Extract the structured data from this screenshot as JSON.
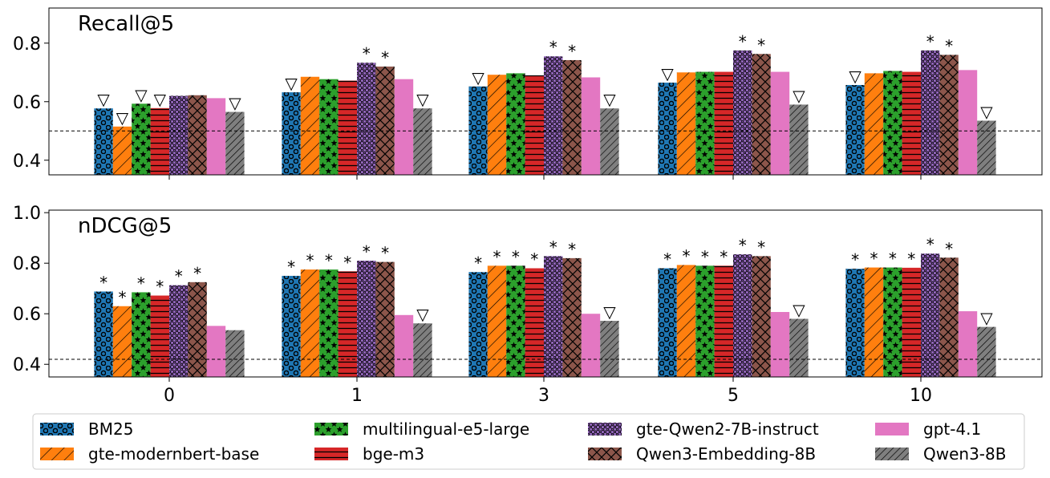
{
  "colors": {
    "BM25": "#1f77b4",
    "gte-modernbert-base": "#ff7f0e",
    "multilingual-e5-large": "#2ca02c",
    "bge-m3": "#d62728",
    "gte-Qwen2-7B-instruct": "#9467bd",
    "Qwen3-Embedding-8B": "#8c564b",
    "gpt-4.1": "#e377c2",
    "Qwen3-8B": "#7f7f7f"
  },
  "hatches": [
    "circles",
    "diagonal",
    "stars",
    "horizontal",
    "dots",
    "crosshatch",
    "none",
    "dense-diagonal"
  ],
  "chart_data": [
    {
      "type": "bar",
      "title": "Recall@5",
      "categories": [
        "0",
        "1",
        "3",
        "5",
        "10"
      ],
      "ylim": [
        0.35,
        0.92
      ],
      "yticks": [
        "0.4",
        "0.6",
        "0.8"
      ],
      "ytick_values": [
        0.4,
        0.6,
        0.8
      ],
      "reference_line": 0.5,
      "grid": false,
      "series": [
        {
          "name": "BM25",
          "values": [
            0.577,
            0.632,
            0.652,
            0.665,
            0.657
          ],
          "marks": [
            "▽",
            "▽",
            "▽",
            "▽",
            "▽"
          ]
        },
        {
          "name": "gte-modernbert-base",
          "values": [
            0.515,
            0.685,
            0.692,
            0.7,
            0.697
          ],
          "marks": [
            "▽",
            "",
            "",
            "",
            ""
          ]
        },
        {
          "name": "multilingual-e5-large",
          "values": [
            0.593,
            0.677,
            0.697,
            0.702,
            0.705
          ],
          "marks": [
            "▽",
            "",
            "",
            "",
            ""
          ]
        },
        {
          "name": "bge-m3",
          "values": [
            0.578,
            0.672,
            0.69,
            0.702,
            0.702
          ],
          "marks": [
            "▽",
            "",
            "",
            "",
            ""
          ]
        },
        {
          "name": "gte-Qwen2-7B-instruct",
          "values": [
            0.62,
            0.733,
            0.755,
            0.775,
            0.775
          ],
          "marks": [
            "",
            "*",
            "*",
            "*",
            "*"
          ]
        },
        {
          "name": "Qwen3-Embedding-8B",
          "values": [
            0.622,
            0.72,
            0.742,
            0.763,
            0.76
          ],
          "marks": [
            "",
            "*",
            "*",
            "*",
            "*"
          ]
        },
        {
          "name": "gpt-4.1",
          "values": [
            0.612,
            0.677,
            0.683,
            0.702,
            0.708
          ],
          "marks": [
            "",
            "",
            "",
            "",
            ""
          ]
        },
        {
          "name": "Qwen3-8B",
          "values": [
            0.565,
            0.577,
            0.577,
            0.59,
            0.535
          ],
          "marks": [
            "▽",
            "▽",
            "▽",
            "▽",
            "▽"
          ]
        }
      ]
    },
    {
      "type": "bar",
      "title": "nDCG@5",
      "categories": [
        "0",
        "1",
        "3",
        "5",
        "10"
      ],
      "ylim": [
        0.35,
        1.01
      ],
      "yticks": [
        "0.4",
        "0.6",
        "0.8",
        "1.0"
      ],
      "ytick_values": [
        0.4,
        0.6,
        0.8,
        1.0
      ],
      "reference_line": 0.42,
      "grid": false,
      "series": [
        {
          "name": "BM25",
          "values": [
            0.688,
            0.75,
            0.765,
            0.78,
            0.778
          ],
          "marks": [
            "*",
            "*",
            "*",
            "*",
            "*"
          ]
        },
        {
          "name": "gte-modernbert-base",
          "values": [
            0.63,
            0.775,
            0.79,
            0.793,
            0.783
          ],
          "marks": [
            "*",
            "*",
            "*",
            "*",
            "*"
          ]
        },
        {
          "name": "multilingual-e5-large",
          "values": [
            0.685,
            0.775,
            0.79,
            0.79,
            0.783
          ],
          "marks": [
            "*",
            "*",
            "*",
            "*",
            "*"
          ]
        },
        {
          "name": "bge-m3",
          "values": [
            0.672,
            0.768,
            0.78,
            0.79,
            0.782
          ],
          "marks": [
            "*",
            "*",
            "*",
            "*",
            "*"
          ]
        },
        {
          "name": "gte-Qwen2-7B-instruct",
          "values": [
            0.713,
            0.81,
            0.828,
            0.835,
            0.838
          ],
          "marks": [
            "*",
            "*",
            "*",
            "*",
            "*"
          ]
        },
        {
          "name": "Qwen3-Embedding-8B",
          "values": [
            0.725,
            0.805,
            0.82,
            0.828,
            0.822
          ],
          "marks": [
            "*",
            "*",
            "*",
            "*",
            "*"
          ]
        },
        {
          "name": "gpt-4.1",
          "values": [
            0.552,
            0.595,
            0.6,
            0.607,
            0.61
          ],
          "marks": [
            "",
            "",
            "",
            "",
            ""
          ]
        },
        {
          "name": "Qwen3-8B",
          "values": [
            0.535,
            0.562,
            0.572,
            0.58,
            0.548
          ],
          "marks": [
            "",
            "▽",
            "▽",
            "▽",
            "▽"
          ]
        }
      ]
    }
  ],
  "legend": {
    "placement": "bottom",
    "entries": [
      "BM25",
      "gte-modernbert-base",
      "multilingual-e5-large",
      "bge-m3",
      "gte-Qwen2-7B-instruct",
      "Qwen3-Embedding-8B",
      "gpt-4.1",
      "Qwen3-8B"
    ]
  }
}
